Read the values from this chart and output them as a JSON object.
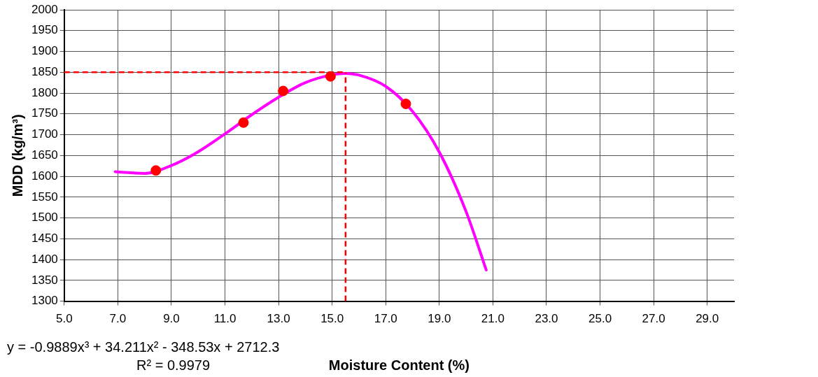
{
  "chart_data": {
    "type": "scatter",
    "xlabel": "Moisture Content (%)",
    "ylabel": "MDD (kg/m³)",
    "xlim": [
      5,
      30
    ],
    "xticks": [
      {
        "value": 5,
        "label": "5.0"
      },
      {
        "value": 7,
        "label": "7.0"
      },
      {
        "value": 9,
        "label": "9.0"
      },
      {
        "value": 11,
        "label": "11.0"
      },
      {
        "value": 13,
        "label": "13.0"
      },
      {
        "value": 15,
        "label": "15.0"
      },
      {
        "value": 17,
        "label": "17.0"
      },
      {
        "value": 19,
        "label": "19.0"
      },
      {
        "value": 21,
        "label": "21.0"
      },
      {
        "value": 23,
        "label": "23.0"
      },
      {
        "value": 25,
        "label": "25.0"
      },
      {
        "value": 27,
        "label": "27.0"
      },
      {
        "value": 29,
        "label": "29.0"
      }
    ],
    "ylim": [
      1300,
      2000
    ],
    "yticks": [
      1300,
      1350,
      1400,
      1450,
      1500,
      1550,
      1600,
      1650,
      1700,
      1750,
      1800,
      1850,
      1900,
      1950,
      2000
    ],
    "grid": true,
    "legend": false,
    "marker": "circle",
    "series": [
      {
        "color": "#ff0000",
        "x": [
          8.42,
          11.69,
          13.17,
          14.94,
          17.75
        ],
        "values": [
          1614,
          1729,
          1805,
          1840,
          1774
        ]
      },
      {
        "type": "line",
        "color": "#ff00ff",
        "marker": "none",
        "x": [
          6.9,
          8,
          9,
          10,
          11,
          12,
          13,
          14,
          15,
          15.5,
          16,
          17,
          18,
          19,
          20,
          20.75
        ],
        "values": [
          1611,
          1607,
          1626,
          1659,
          1702,
          1748,
          1790,
          1825,
          1844,
          1847,
          1843,
          1816,
          1756,
          1658,
          1515,
          1375
        ]
      }
    ],
    "ref_lines": [
      {
        "axis": "y",
        "value": 1850,
        "color": "#ff0000",
        "line_style": "dashed"
      },
      {
        "axis": "x",
        "value": 15.5,
        "color": "#ff0000",
        "line_style": "dashed"
      }
    ],
    "annotations": [
      "y = -0.9889x³ + 34.211x² - 348.53x + 2712.3",
      "R² = 0.9979"
    ]
  }
}
